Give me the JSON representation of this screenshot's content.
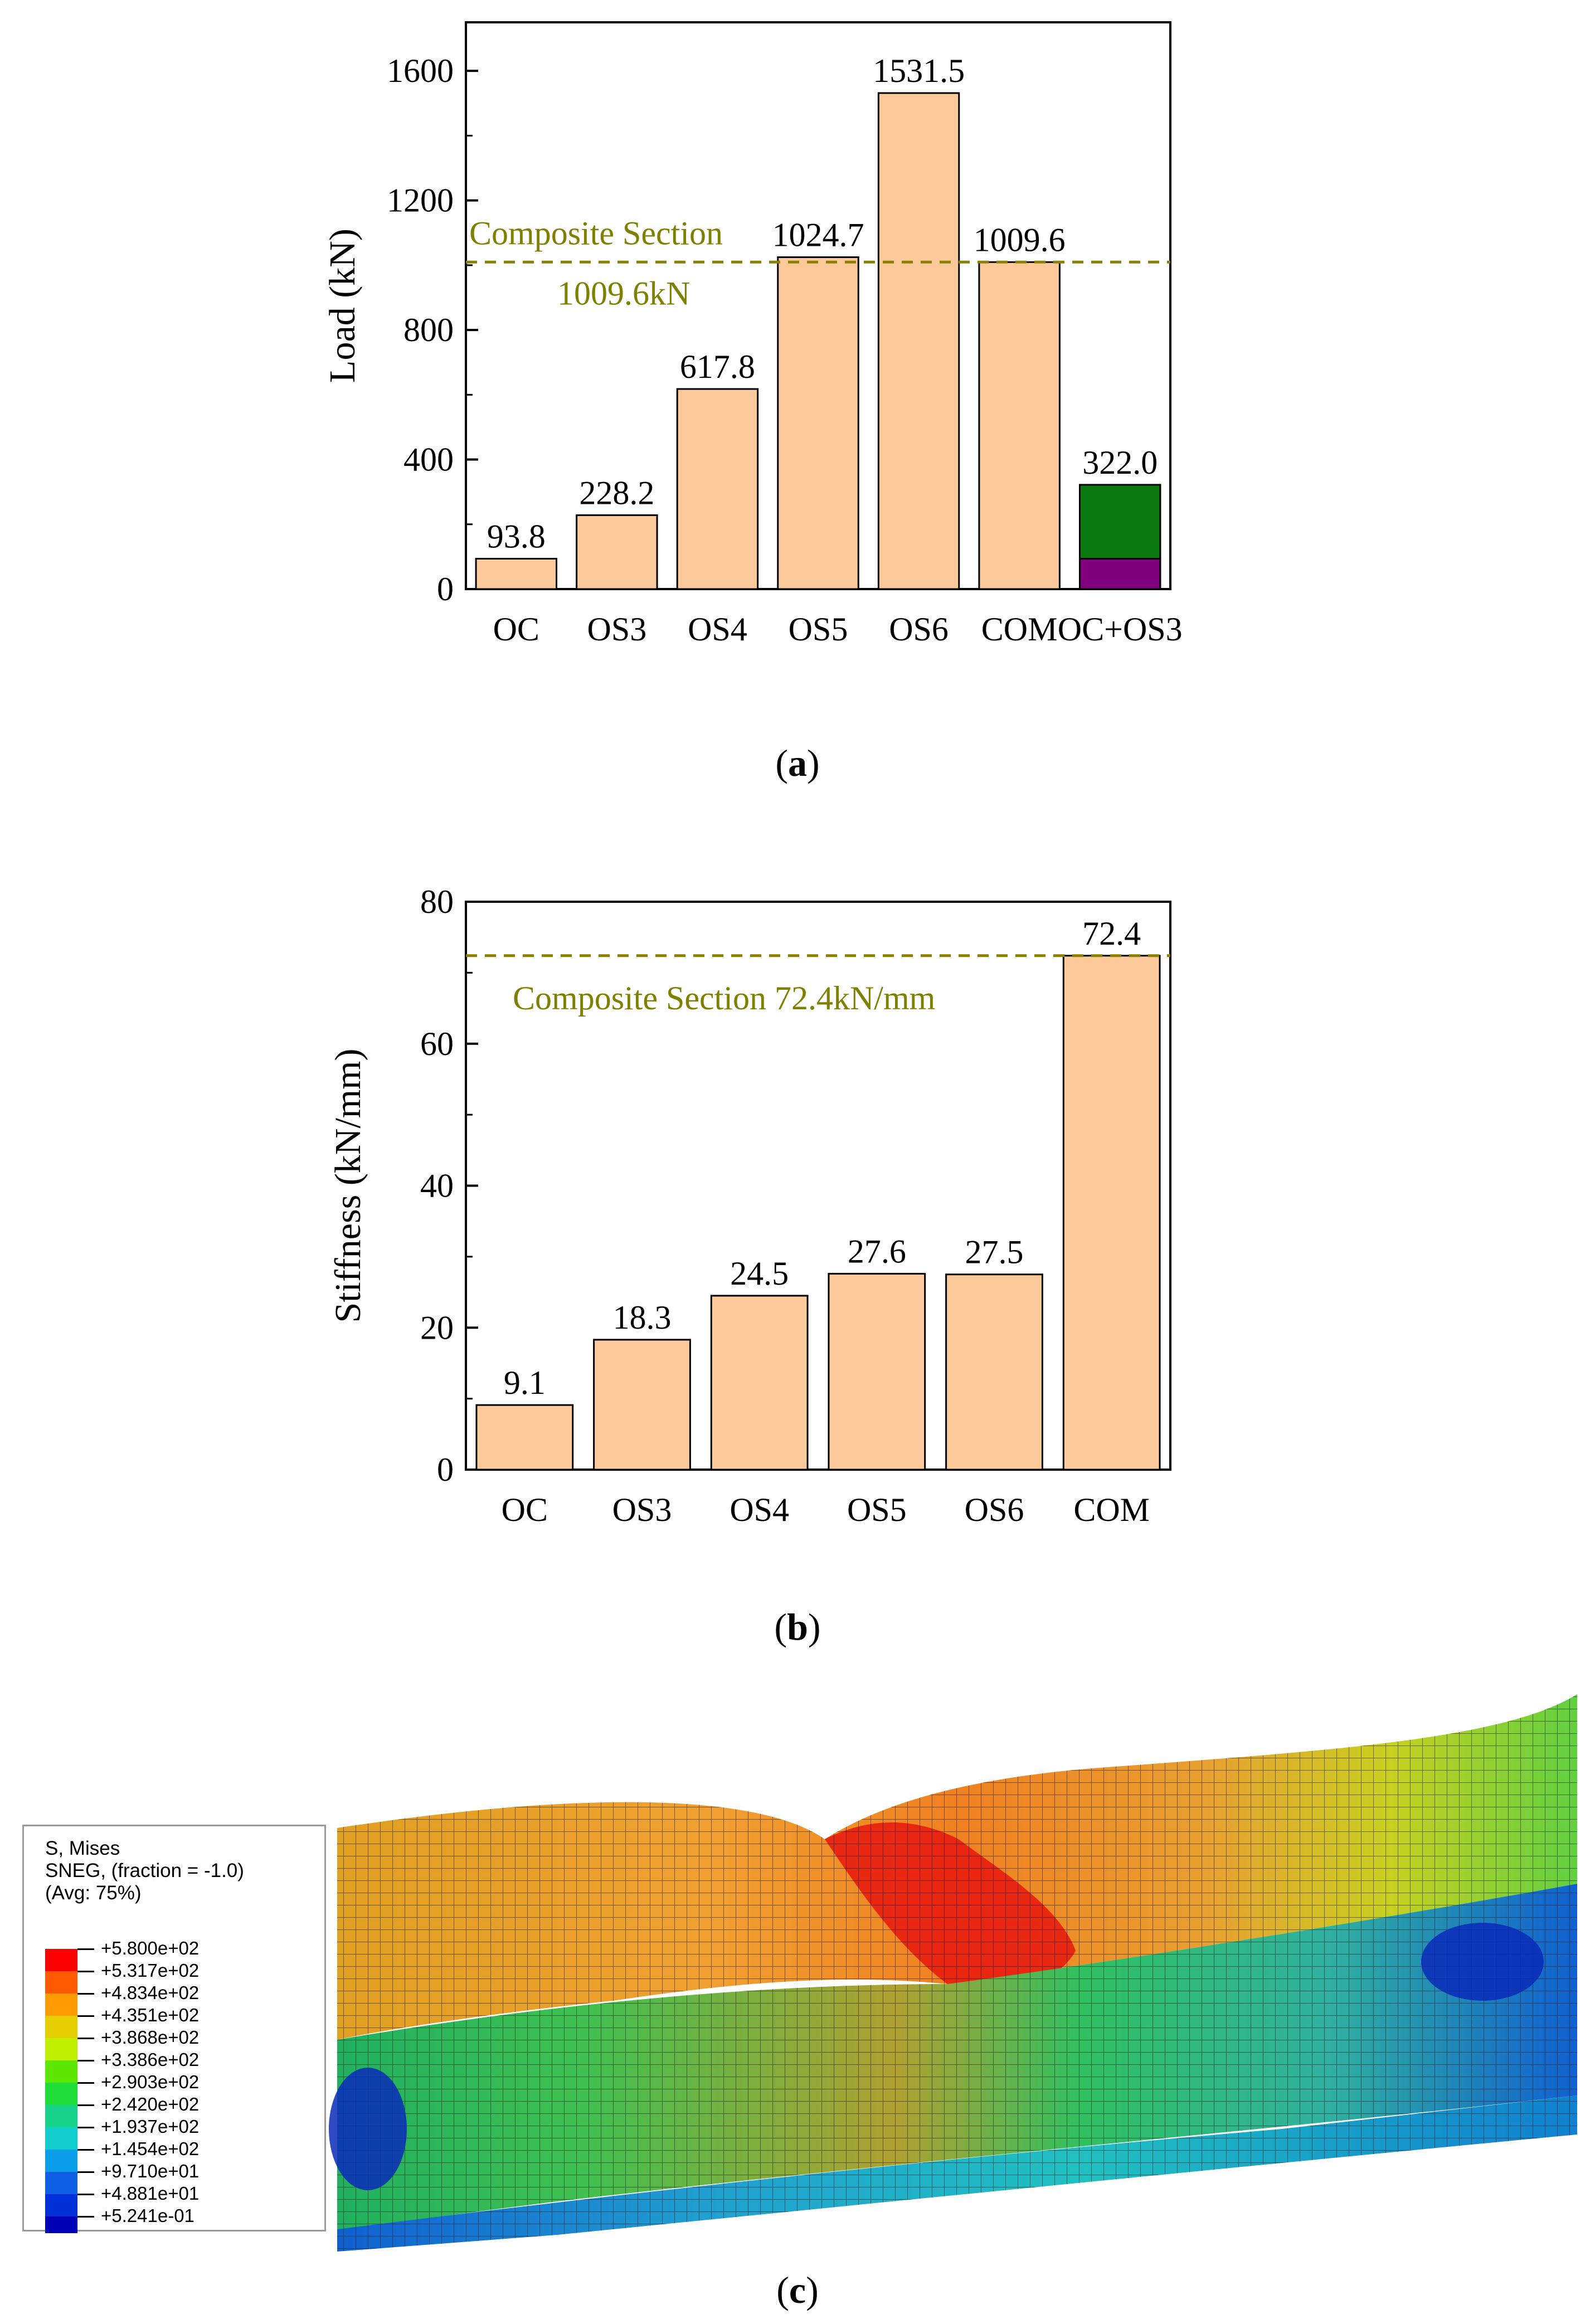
{
  "chart_data": [
    {
      "type": "bar",
      "title": "",
      "xlabel": "",
      "ylabel": "Load (kN)",
      "ylim": [
        0,
        1750
      ],
      "yticks": [
        0,
        400,
        800,
        1200,
        1600
      ],
      "categories": [
        "OC",
        "OS3",
        "OS4",
        "OS5",
        "OS6",
        "COM",
        "OC+OS3"
      ],
      "values": [
        93.8,
        228.2,
        617.8,
        1024.7,
        1531.5,
        1009.6,
        322.0
      ],
      "value_labels": [
        "93.8",
        "228.2",
        "617.8",
        "1024.7",
        "1531.5",
        "1009.6",
        "322.0"
      ],
      "stacked_segments": {
        "category": "OC+OS3",
        "bottom": 93.8,
        "top": 228.2
      },
      "reference_line": {
        "value": 1009.6,
        "label_line1": "Composite Section",
        "label_line2": "1009.6kN"
      },
      "caption": "a"
    },
    {
      "type": "bar",
      "title": "",
      "xlabel": "",
      "ylabel": "Stiffness (kN/mm)",
      "ylim": [
        0,
        80
      ],
      "yticks": [
        0,
        20,
        40,
        60,
        80
      ],
      "categories": [
        "OC",
        "OS3",
        "OS4",
        "OS5",
        "OS6",
        "COM"
      ],
      "values": [
        9.1,
        18.3,
        24.5,
        27.6,
        27.5,
        72.4
      ],
      "value_labels": [
        "9.1",
        "18.3",
        "24.5",
        "27.6",
        "27.5",
        "72.4"
      ],
      "reference_line": {
        "value": 72.4,
        "label": "Composite Section 72.4kN/mm"
      },
      "caption": "b"
    }
  ],
  "colors": {
    "bar_fill": "#FBC99A",
    "stack_bottom": "#800080",
    "stack_top": "#0A7A10",
    "reference_line": "#8B8000",
    "reference_text": "#808000"
  },
  "contour": {
    "caption": "c",
    "legend_title": [
      "S, Mises",
      "SNEG, (fraction = -1.0)",
      "(Avg: 75%)"
    ],
    "levels": [
      "+5.800e+02",
      "+5.317e+02",
      "+4.834e+02",
      "+4.351e+02",
      "+3.868e+02",
      "+3.386e+02",
      "+2.903e+02",
      "+2.420e+02",
      "+1.937e+02",
      "+1.454e+02",
      "+9.710e+01",
      "+4.881e+01",
      "+5.241e-01"
    ],
    "level_colors": [
      "#FF0000",
      "#FF5A00",
      "#FF9A00",
      "#E6CF00",
      "#C0F000",
      "#5CE600",
      "#1FDC38",
      "#17D38A",
      "#10CCCC",
      "#0A9EEB",
      "#1060E6",
      "#0030D8",
      "#0000B8"
    ]
  }
}
